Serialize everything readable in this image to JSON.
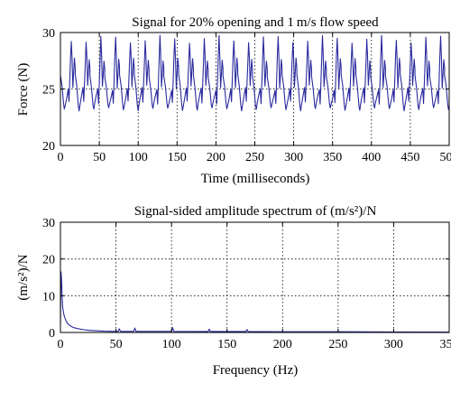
{
  "chart_data": [
    {
      "type": "line",
      "title": "Signal for 20% opening and 1 m/s flow speed",
      "xlabel": "Time (milliseconds)",
      "ylabel": "Force (N)",
      "xlim": [
        0,
        500
      ],
      "ylim": [
        20,
        30
      ],
      "xticks": [
        "0",
        "50",
        "100",
        "150",
        "200",
        "250",
        "300",
        "350",
        "400",
        "450",
        "500"
      ],
      "yticks": [
        "20",
        "25",
        "30"
      ],
      "grid": true,
      "series": [
        {
          "color": "#2a2a9e",
          "period_ms": 19,
          "x": [
            0,
            2,
            4,
            5,
            6,
            8,
            10,
            11,
            12,
            13,
            14,
            15,
            16,
            17,
            18,
            19
          ],
          "y": [
            26.2,
            25.2,
            23.6,
            23.2,
            23.6,
            24.3,
            25.0,
            23.8,
            25.6,
            27.6,
            29.4,
            27.8,
            25.2,
            26.4,
            27.6,
            26.8
          ]
        }
      ]
    },
    {
      "type": "line",
      "title": "Signal-sided amplitude spectrum of (m/s²)/N",
      "xlabel": "Frequency (Hz)",
      "ylabel": "(m/s²)/N",
      "xlim": [
        0,
        350
      ],
      "ylim": [
        0,
        30
      ],
      "xticks": [
        "0",
        "50",
        "100",
        "150",
        "200",
        "250",
        "300",
        "350"
      ],
      "yticks": [
        "0",
        "10",
        "20",
        "30"
      ],
      "grid": true,
      "series": [
        {
          "color": "#2a2a9e",
          "x": [
            0,
            0.5,
            1,
            1.5,
            2,
            3,
            4,
            5,
            6,
            8,
            10,
            12,
            15,
            20,
            25,
            30,
            40,
            50,
            52,
            53,
            54,
            66,
            67,
            68,
            100,
            101,
            102,
            133,
            134,
            135,
            167,
            168,
            169,
            200,
            250,
            300,
            350
          ],
          "y": [
            2,
            16.5,
            14.5,
            10,
            7,
            5,
            4,
            3.2,
            2.6,
            2.0,
            1.6,
            1.3,
            1.1,
            0.8,
            0.6,
            0.5,
            0.35,
            0.3,
            0.3,
            1.0,
            0.3,
            0.3,
            1.2,
            0.3,
            0.3,
            1.3,
            0.3,
            0.25,
            0.9,
            0.25,
            0.25,
            0.8,
            0.25,
            0.2,
            0.2,
            0.15,
            0.1
          ]
        }
      ]
    }
  ]
}
